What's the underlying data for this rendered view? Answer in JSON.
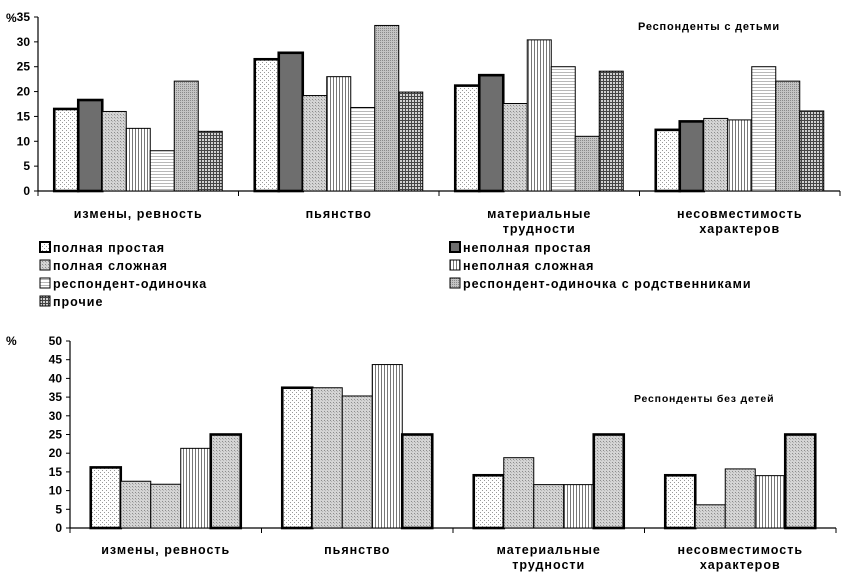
{
  "chart_data": [
    {
      "type": "bar",
      "annotation": "Респонденты с детьми",
      "y_unit_label": "%",
      "ylim": [
        0,
        35
      ],
      "yticks": [
        "0",
        "5",
        "10",
        "15",
        "20",
        "25",
        "30",
        "35"
      ],
      "categories": [
        [
          "измены, ревность"
        ],
        [
          "пьянство"
        ],
        [
          "материальные",
          "трудности"
        ],
        [
          "несовместимость",
          "характеров"
        ]
      ],
      "series": [
        {
          "name": "полная простая",
          "values": [
            16.5,
            26.5,
            21.2,
            12.3
          ]
        },
        {
          "name": "неполная простая",
          "values": [
            18.3,
            27.8,
            23.3,
            14.0
          ]
        },
        {
          "name": "полная сложная",
          "values": [
            16.0,
            19.2,
            17.6,
            14.6
          ]
        },
        {
          "name": "неполная сложная",
          "values": [
            12.6,
            23.0,
            30.4,
            14.3
          ]
        },
        {
          "name": "респондент-одиночка",
          "values": [
            8.1,
            16.8,
            25.0,
            25.0
          ]
        },
        {
          "name": "респондент-одиночка с родственниками",
          "values": [
            22.1,
            33.3,
            11.0,
            22.1
          ]
        },
        {
          "name": "прочие",
          "values": [
            12.0,
            19.9,
            24.1,
            16.1
          ]
        }
      ],
      "legend_placement": "bottom"
    },
    {
      "type": "bar",
      "annotation": "Респонденты без детей",
      "y_unit_label": "%",
      "ylim": [
        0,
        50
      ],
      "yticks": [
        "0",
        "5",
        "10",
        "15",
        "20",
        "25",
        "30",
        "35",
        "40",
        "45",
        "50"
      ],
      "categories": [
        [
          "измены, ревность"
        ],
        [
          "пьянство"
        ],
        [
          "материальные",
          "трудности"
        ],
        [
          "несовместимость",
          "характеров"
        ]
      ],
      "series": [
        {
          "values": [
            16.2,
            37.5,
            14.1,
            14.1
          ]
        },
        {
          "values": [
            12.5,
            37.5,
            18.8,
            6.2
          ]
        },
        {
          "values": [
            11.7,
            35.3,
            11.6,
            15.8
          ]
        },
        {
          "values": [
            21.3,
            43.7,
            11.6,
            14.0
          ]
        },
        {
          "values": [
            25.0,
            25.0,
            25.0,
            25.0
          ]
        }
      ]
    }
  ]
}
